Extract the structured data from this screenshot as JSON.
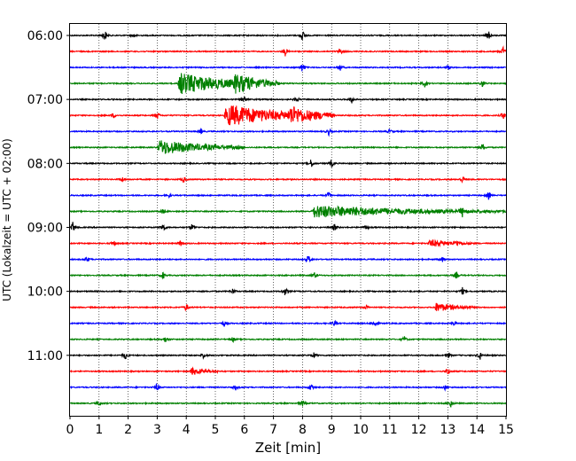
{
  "chart_data": {
    "type": "line",
    "subtype": "helicorder",
    "xlabel": "Zeit  [min]",
    "ylabel": "UTC (Lokalzeit = UTC + 02:00)",
    "xlim": [
      0,
      15
    ],
    "x_ticks": [
      "0",
      "1",
      "2",
      "3",
      "4",
      "5",
      "6",
      "7",
      "8",
      "9",
      "10",
      "11",
      "12",
      "13",
      "14",
      "15"
    ],
    "x_grid": "dotted",
    "row_minutes": 15,
    "color_cycle": [
      "#000000",
      "#ff0000",
      "#0000ff",
      "#008000"
    ],
    "y_ticks": [
      {
        "label": "06:00",
        "row": 0
      },
      {
        "label": "07:00",
        "row": 4
      },
      {
        "label": "08:00",
        "row": 8
      },
      {
        "label": "09:00",
        "row": 12
      },
      {
        "label": "10:00",
        "row": 16
      },
      {
        "label": "11:00",
        "row": 20
      }
    ],
    "rows": [
      {
        "start": "06:00",
        "events": [
          {
            "t": 1.2,
            "a": 1.0
          },
          {
            "t": 2.2,
            "a": 0.4
          },
          {
            "t": 8.0,
            "a": 0.9
          },
          {
            "t": 14.4,
            "a": 0.8
          }
        ]
      },
      {
        "start": "06:15",
        "events": [
          {
            "t": 7.4,
            "a": 0.8
          },
          {
            "t": 9.3,
            "a": 0.6
          },
          {
            "t": 14.9,
            "a": 0.8
          }
        ]
      },
      {
        "start": "06:30",
        "events": [
          {
            "t": 8.0,
            "a": 0.9
          },
          {
            "t": 9.3,
            "a": 0.5
          },
          {
            "t": 13.0,
            "a": 0.4
          }
        ]
      },
      {
        "start": "06:45",
        "events": [
          {
            "t": 3.7,
            "a": 1.8,
            "dur": 3.5
          },
          {
            "t": 5.6,
            "a": 1.3,
            "dur": 1.5
          },
          {
            "t": 12.2,
            "a": 0.6
          },
          {
            "t": 14.2,
            "a": 0.7
          }
        ]
      },
      {
        "start": "07:00",
        "events": [
          {
            "t": 6.0,
            "a": 0.6
          },
          {
            "t": 7.8,
            "a": 0.5
          },
          {
            "t": 9.7,
            "a": 0.7
          }
        ]
      },
      {
        "start": "07:15",
        "events": [
          {
            "t": 1.5,
            "a": 0.5
          },
          {
            "t": 3.0,
            "a": 0.7
          },
          {
            "t": 5.3,
            "a": 1.9,
            "dur": 3.8
          },
          {
            "t": 7.5,
            "a": 1.2,
            "dur": 1.5
          },
          {
            "t": 14.9,
            "a": 0.7
          }
        ]
      },
      {
        "start": "07:30",
        "events": [
          {
            "t": 4.5,
            "a": 0.4
          },
          {
            "t": 8.9,
            "a": 0.6
          },
          {
            "t": 11.0,
            "a": 0.4
          }
        ]
      },
      {
        "start": "07:45",
        "events": [
          {
            "t": 3.0,
            "a": 1.3,
            "dur": 3.0
          },
          {
            "t": 14.2,
            "a": 0.7
          }
        ]
      },
      {
        "start": "08:00",
        "events": [
          {
            "t": 8.3,
            "a": 0.8
          },
          {
            "t": 9.0,
            "a": 0.6
          }
        ]
      },
      {
        "start": "08:15",
        "events": [
          {
            "t": 1.8,
            "a": 0.5
          },
          {
            "t": 3.9,
            "a": 0.6
          },
          {
            "t": 13.5,
            "a": 0.6
          }
        ]
      },
      {
        "start": "08:30",
        "events": [
          {
            "t": 3.4,
            "a": 0.4
          },
          {
            "t": 8.9,
            "a": 0.6
          },
          {
            "t": 14.4,
            "a": 0.6
          }
        ]
      },
      {
        "start": "08:45",
        "events": [
          {
            "t": 3.2,
            "a": 0.5
          },
          {
            "t": 8.3,
            "a": 1.0,
            "dur": 6.7
          },
          {
            "t": 13.5,
            "a": 0.7
          }
        ]
      },
      {
        "start": "09:00",
        "events": [
          {
            "t": 0.1,
            "a": 1.0
          },
          {
            "t": 3.2,
            "a": 0.9
          },
          {
            "t": 4.2,
            "a": 0.6
          },
          {
            "t": 9.1,
            "a": 0.7
          },
          {
            "t": 10.2,
            "a": 0.6
          }
        ]
      },
      {
        "start": "09:15",
        "events": [
          {
            "t": 1.5,
            "a": 0.5
          },
          {
            "t": 3.8,
            "a": 0.5
          },
          {
            "t": 12.3,
            "a": 0.6,
            "dur": 1.6
          },
          {
            "t": 13.3,
            "a": 0.5
          }
        ]
      },
      {
        "start": "09:30",
        "events": [
          {
            "t": 0.6,
            "a": 0.5
          },
          {
            "t": 8.2,
            "a": 0.8
          },
          {
            "t": 12.8,
            "a": 0.5
          }
        ]
      },
      {
        "start": "09:45",
        "events": [
          {
            "t": 3.2,
            "a": 0.6
          },
          {
            "t": 8.4,
            "a": 0.6
          },
          {
            "t": 13.3,
            "a": 0.6
          }
        ]
      },
      {
        "start": "10:00",
        "events": [
          {
            "t": 5.6,
            "a": 0.5
          },
          {
            "t": 7.4,
            "a": 0.7
          },
          {
            "t": 13.5,
            "a": 0.6
          }
        ]
      },
      {
        "start": "10:15",
        "events": [
          {
            "t": 4.0,
            "a": 0.7
          },
          {
            "t": 10.2,
            "a": 0.4
          },
          {
            "t": 12.5,
            "a": 0.8,
            "dur": 1.4
          }
        ]
      },
      {
        "start": "10:30",
        "events": [
          {
            "t": 5.3,
            "a": 0.5
          },
          {
            "t": 9.1,
            "a": 0.5
          },
          {
            "t": 10.5,
            "a": 0.7
          },
          {
            "t": 13.2,
            "a": 0.4
          }
        ]
      },
      {
        "start": "10:45",
        "events": [
          {
            "t": 3.3,
            "a": 0.7
          },
          {
            "t": 5.6,
            "a": 0.5
          },
          {
            "t": 11.5,
            "a": 0.5
          }
        ]
      },
      {
        "start": "11:00",
        "events": [
          {
            "t": 1.9,
            "a": 0.8
          },
          {
            "t": 4.6,
            "a": 0.5
          },
          {
            "t": 8.4,
            "a": 0.5
          },
          {
            "t": 13.0,
            "a": 0.6
          },
          {
            "t": 14.1,
            "a": 0.8
          }
        ]
      },
      {
        "start": "11:15",
        "events": [
          {
            "t": 4.1,
            "a": 0.7,
            "dur": 1.0
          },
          {
            "t": 13.0,
            "a": 0.7
          }
        ]
      },
      {
        "start": "11:30",
        "events": [
          {
            "t": 3.0,
            "a": 0.7
          },
          {
            "t": 5.7,
            "a": 0.4
          },
          {
            "t": 8.3,
            "a": 0.8
          },
          {
            "t": 12.9,
            "a": 0.4
          }
        ]
      },
      {
        "start": "11:45",
        "events": [
          {
            "t": 1.0,
            "a": 0.5
          },
          {
            "t": 8.0,
            "a": 0.5
          },
          {
            "t": 13.1,
            "a": 0.7
          }
        ]
      }
    ]
  }
}
